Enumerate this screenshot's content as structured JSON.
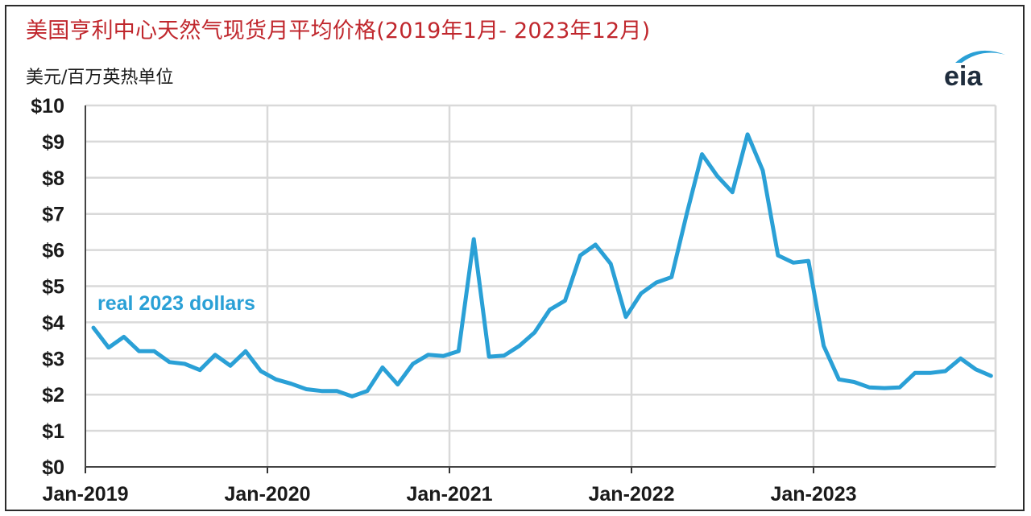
{
  "title": "美国亨利中心天然气现货月平均价格(2019年1月- 2023年12月)",
  "unit_label": "美元/百万英热单位",
  "logo_text": "eia",
  "colors": {
    "series": "#2aa0d6",
    "title": "#c0272d",
    "grid": "#d9d9d9"
  },
  "chart_data": {
    "type": "line",
    "title": "美国亨利中心天然气现货月平均价格(2019年1月- 2023年12月)",
    "ylabel": "美元/百万英热单位",
    "xlabel": "",
    "ylim": [
      0,
      10
    ],
    "yticks": [
      "$0",
      "$1",
      "$2",
      "$3",
      "$4",
      "$5",
      "$6",
      "$7",
      "$8",
      "$9",
      "$10"
    ],
    "xticks": [
      "Jan-2019",
      "Jan-2020",
      "Jan-2021",
      "Jan-2022",
      "Jan-2023"
    ],
    "grid": true,
    "annotation": "real 2023 dollars",
    "series": [
      {
        "name": "real 2023 dollars",
        "x": [
          "2019-01",
          "2019-02",
          "2019-03",
          "2019-04",
          "2019-05",
          "2019-06",
          "2019-07",
          "2019-08",
          "2019-09",
          "2019-10",
          "2019-11",
          "2019-12",
          "2020-01",
          "2020-02",
          "2020-03",
          "2020-04",
          "2020-05",
          "2020-06",
          "2020-07",
          "2020-08",
          "2020-09",
          "2020-10",
          "2020-11",
          "2020-12",
          "2021-01",
          "2021-02",
          "2021-03",
          "2021-04",
          "2021-05",
          "2021-06",
          "2021-07",
          "2021-08",
          "2021-09",
          "2021-10",
          "2021-11",
          "2021-12",
          "2022-01",
          "2022-02",
          "2022-03",
          "2022-04",
          "2022-05",
          "2022-06",
          "2022-07",
          "2022-08",
          "2022-09",
          "2022-10",
          "2022-11",
          "2022-12",
          "2023-01",
          "2023-02",
          "2023-03",
          "2023-04",
          "2023-05",
          "2023-06",
          "2023-07",
          "2023-08",
          "2023-09",
          "2023-10",
          "2023-11",
          "2023-12"
        ],
        "values": [
          3.85,
          3.3,
          3.6,
          3.2,
          3.2,
          2.9,
          2.85,
          2.68,
          3.1,
          2.8,
          3.2,
          2.65,
          2.42,
          2.3,
          2.15,
          2.1,
          2.1,
          1.95,
          2.1,
          2.75,
          2.28,
          2.85,
          3.1,
          3.07,
          3.2,
          6.3,
          3.05,
          3.08,
          3.35,
          3.72,
          4.35,
          4.6,
          5.85,
          6.15,
          5.62,
          4.15,
          4.8,
          5.1,
          5.25,
          7.0,
          8.65,
          8.05,
          7.6,
          9.2,
          8.2,
          5.85,
          5.65,
          5.7,
          3.35,
          2.42,
          2.35,
          2.2,
          2.18,
          2.2,
          2.6,
          2.6,
          2.65,
          3.0,
          2.7,
          2.52
        ]
      }
    ]
  }
}
